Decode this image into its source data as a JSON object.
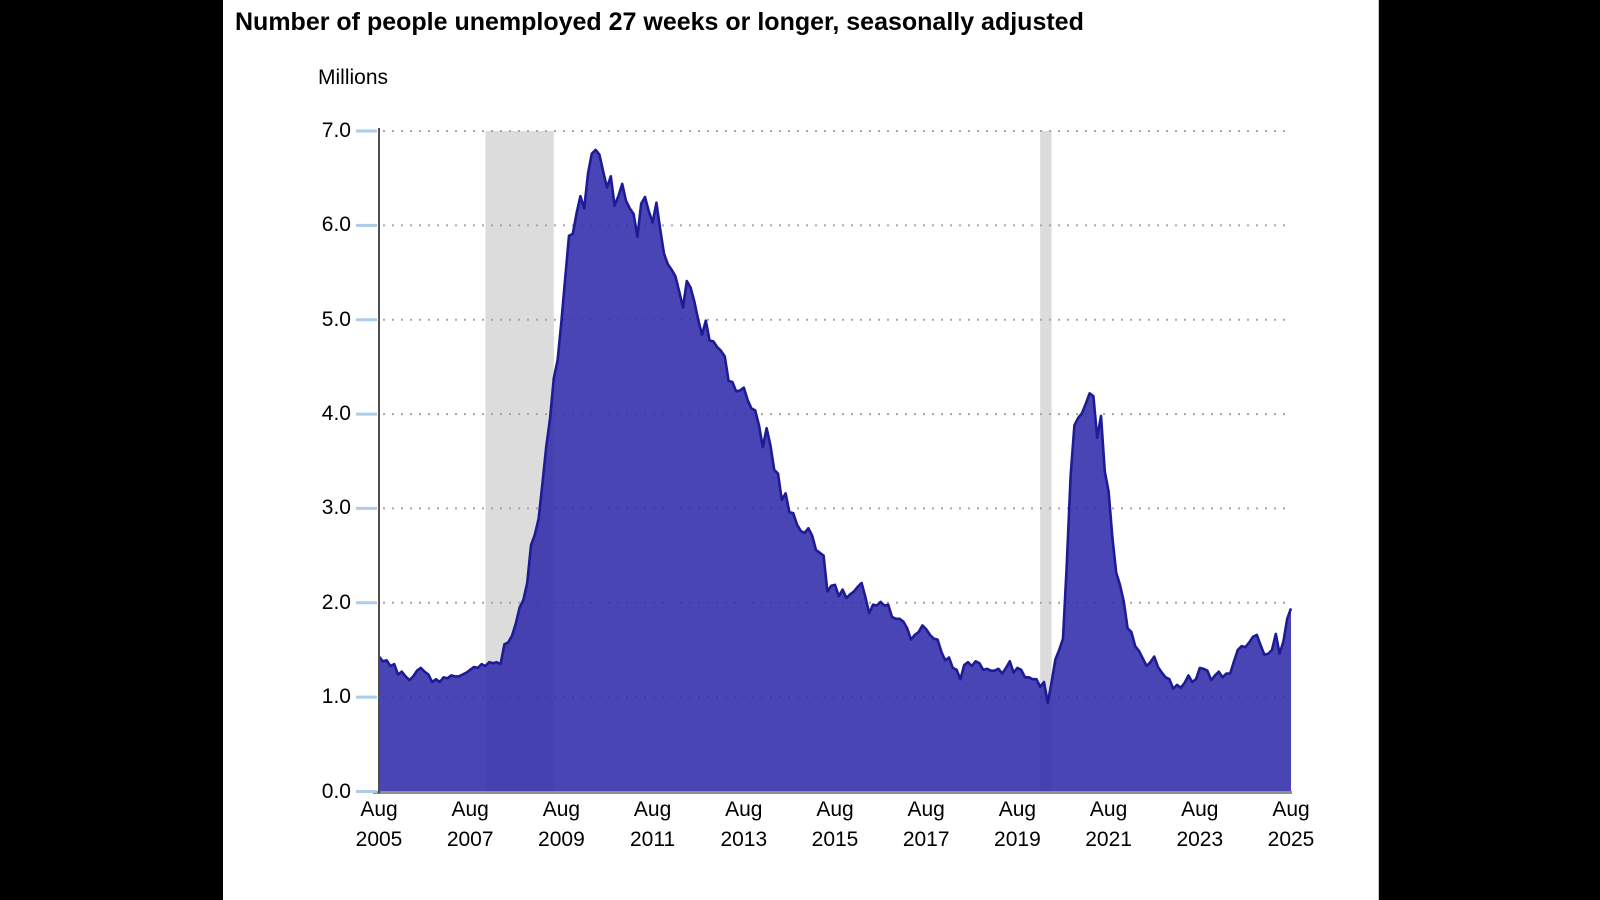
{
  "header": {
    "title": "Number of people unemployed 27 weeks or longer, seasonally adjusted"
  },
  "chart_data": {
    "type": "area",
    "title": "Number of people unemployed 27 weeks or longer, seasonally adjusted",
    "unit_label": "Millions",
    "xlabel": "",
    "ylabel": "Millions",
    "ylim": [
      0.0,
      7.0
    ],
    "y_ticks": [
      "0.0",
      "1.0",
      "2.0",
      "3.0",
      "4.0",
      "5.0",
      "6.0",
      "7.0"
    ],
    "x_ticks": [
      {
        "month": "Aug",
        "year": "2005"
      },
      {
        "month": "Aug",
        "year": "2007"
      },
      {
        "month": "Aug",
        "year": "2009"
      },
      {
        "month": "Aug",
        "year": "2011"
      },
      {
        "month": "Aug",
        "year": "2013"
      },
      {
        "month": "Aug",
        "year": "2015"
      },
      {
        "month": "Aug",
        "year": "2017"
      },
      {
        "month": "Aug",
        "year": "2019"
      },
      {
        "month": "Aug",
        "year": "2021"
      },
      {
        "month": "Aug",
        "year": "2023"
      },
      {
        "month": "Aug",
        "year": "2025"
      }
    ],
    "frequency": "monthly",
    "x_start": "2005-08",
    "x_end": "2025-08",
    "series": [
      {
        "name": "Unemployed 27 weeks or longer (millions)",
        "values": [
          1.43,
          1.38,
          1.39,
          1.33,
          1.35,
          1.24,
          1.27,
          1.22,
          1.18,
          1.22,
          1.28,
          1.31,
          1.27,
          1.24,
          1.16,
          1.19,
          1.16,
          1.21,
          1.2,
          1.23,
          1.22,
          1.22,
          1.24,
          1.26,
          1.29,
          1.32,
          1.31,
          1.35,
          1.33,
          1.37,
          1.36,
          1.37,
          1.35,
          1.56,
          1.58,
          1.65,
          1.78,
          1.95,
          2.03,
          2.21,
          2.61,
          2.72,
          2.89,
          3.26,
          3.65,
          3.95,
          4.38,
          4.57,
          4.98,
          5.44,
          5.89,
          5.91,
          6.13,
          6.31,
          6.18,
          6.55,
          6.76,
          6.8,
          6.75,
          6.57,
          6.4,
          6.52,
          6.21,
          6.31,
          6.44,
          6.26,
          6.18,
          6.12,
          5.88,
          6.23,
          6.3,
          6.15,
          6.03,
          6.24,
          5.96,
          5.7,
          5.59,
          5.53,
          5.46,
          5.3,
          5.13,
          5.41,
          5.34,
          5.19,
          5.0,
          4.84,
          4.99,
          4.78,
          4.77,
          4.71,
          4.67,
          4.61,
          4.35,
          4.34,
          4.24,
          4.25,
          4.28,
          4.15,
          4.06,
          4.04,
          3.88,
          3.65,
          3.85,
          3.67,
          3.41,
          3.37,
          3.09,
          3.16,
          2.96,
          2.95,
          2.83,
          2.76,
          2.74,
          2.79,
          2.71,
          2.56,
          2.53,
          2.5,
          2.12,
          2.18,
          2.19,
          2.07,
          2.14,
          2.05,
          2.09,
          2.12,
          2.17,
          2.21,
          2.06,
          1.89,
          1.98,
          1.97,
          2.01,
          1.97,
          1.98,
          1.85,
          1.83,
          1.83,
          1.8,
          1.73,
          1.61,
          1.66,
          1.69,
          1.76,
          1.72,
          1.66,
          1.62,
          1.61,
          1.48,
          1.39,
          1.42,
          1.31,
          1.29,
          1.19,
          1.34,
          1.37,
          1.33,
          1.38,
          1.36,
          1.29,
          1.3,
          1.28,
          1.28,
          1.3,
          1.25,
          1.31,
          1.38,
          1.26,
          1.31,
          1.29,
          1.21,
          1.21,
          1.19,
          1.19,
          1.11,
          1.16,
          0.94,
          1.16,
          1.4,
          1.5,
          1.62,
          2.41,
          3.34,
          3.88,
          3.96,
          4.01,
          4.11,
          4.22,
          4.19,
          3.75,
          3.98,
          3.39,
          3.18,
          2.69,
          2.32,
          2.19,
          2.01,
          1.73,
          1.69,
          1.54,
          1.49,
          1.41,
          1.33,
          1.37,
          1.43,
          1.32,
          1.26,
          1.21,
          1.19,
          1.09,
          1.13,
          1.1,
          1.15,
          1.23,
          1.16,
          1.19,
          1.31,
          1.3,
          1.28,
          1.18,
          1.23,
          1.27,
          1.21,
          1.25,
          1.25,
          1.38,
          1.5,
          1.54,
          1.53,
          1.58,
          1.64,
          1.66,
          1.55,
          1.45,
          1.46,
          1.5,
          1.67,
          1.46,
          1.59,
          1.83,
          1.94
        ]
      }
    ],
    "recessions": [
      {
        "start": "2007-12",
        "end": "2009-06"
      },
      {
        "start": "2020-02",
        "end": "2020-05"
      }
    ],
    "grid": "dotted-horizontal",
    "legend": "none",
    "colors": {
      "area_fill": "#312bab",
      "area_fill_apparent": "#4a44b5",
      "line": "#1e1b96",
      "recession_band": "#dcdcdc",
      "gridline": "#a6a6a6",
      "y_axis_line": "#4d4d4d",
      "baseline": "#8f8f8f",
      "tick_mark": "#aecbea",
      "text": "#000000",
      "page_letterbox": "#000000",
      "background": "#ffffff"
    }
  }
}
